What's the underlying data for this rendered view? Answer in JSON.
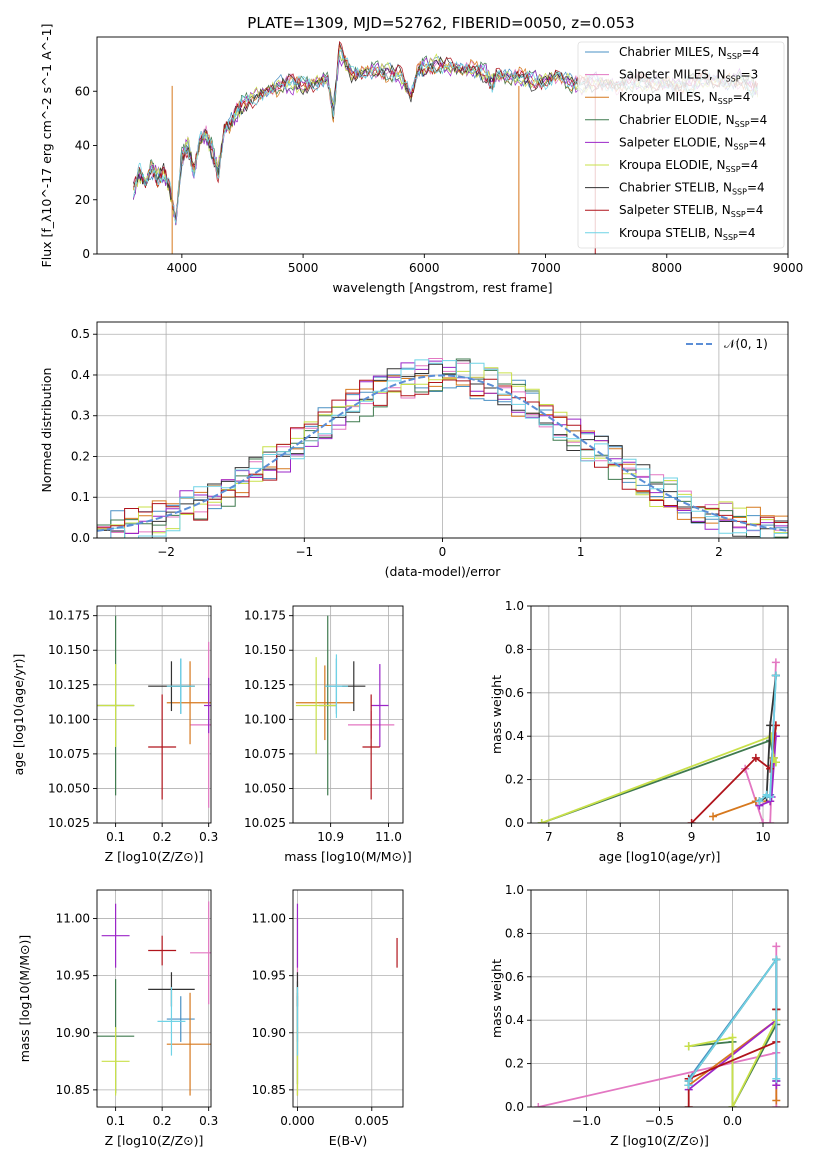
{
  "figure_title": "PLATE=1309, MJD=52762, FIBERID=0050, z=0.053",
  "colors": {
    "Chabrier MILES": "#4a90c4",
    "Salpeter MILES": "#e377c2",
    "Kroupa MILES": "#d6781e",
    "Chabrier ELODIE": "#3f7a4f",
    "Salpeter ELODIE": "#9b26c8",
    "Kroupa ELODIE": "#c9e04a",
    "Chabrier STELIB": "#333333",
    "Salpeter STELIB": "#b0141c",
    "Kroupa STELIB": "#6fd3e6",
    "normal_curve": "#5b8ed6",
    "grid": "#b0b0b0"
  },
  "chart_data": [
    {
      "id": "spectrum",
      "type": "line",
      "xlabel": "wavelength [Angstrom, rest frame]",
      "ylabel": "Flux [f_λ10^-17 erg cm^-2 s^-1 A^-1]",
      "xlim": [
        3300,
        9000
      ],
      "ylim": [
        0,
        80
      ],
      "xticks": [
        4000,
        5000,
        6000,
        7000,
        8000,
        9000
      ],
      "yticks": [
        0,
        20,
        40,
        60
      ],
      "grid": false,
      "legend_position": "top-right",
      "legend": [
        {
          "label": "Chabrier MILES, N_SSP=4",
          "main": "Chabrier MILES, N",
          "sub": "SSP",
          "tail": "=4",
          "series": "Chabrier MILES"
        },
        {
          "label": "Salpeter MILES, N_SSP=3",
          "main": "Salpeter MILES, N",
          "sub": "SSP",
          "tail": "=3",
          "series": "Salpeter MILES"
        },
        {
          "label": "Kroupa MILES, N_SSP=4",
          "main": "Kroupa MILES, N",
          "sub": "SSP",
          "tail": "=4",
          "series": "Kroupa MILES"
        },
        {
          "label": "Chabrier ELODIE, N_SSP=4",
          "main": "Chabrier ELODIE, N",
          "sub": "SSP",
          "tail": "=4",
          "series": "Chabrier ELODIE"
        },
        {
          "label": "Salpeter ELODIE, N_SSP=4",
          "main": "Salpeter ELODIE, N",
          "sub": "SSP",
          "tail": "=4",
          "series": "Salpeter ELODIE"
        },
        {
          "label": "Kroupa ELODIE, N_SSP=4",
          "main": "Kroupa ELODIE, N",
          "sub": "SSP",
          "tail": "=4",
          "series": "Kroupa ELODIE"
        },
        {
          "label": "Chabrier STELIB, N_SSP=4",
          "main": "Chabrier STELIB, N",
          "sub": "SSP",
          "tail": "=4",
          "series": "Chabrier STELIB"
        },
        {
          "label": "Salpeter STELIB, N_SSP=4",
          "main": "Salpeter STELIB, N",
          "sub": "SSP",
          "tail": "=4",
          "series": "Salpeter STELIB"
        },
        {
          "label": "Kroupa STELIB, N_SSP=4",
          "main": "Kroupa STELIB, N",
          "sub": "SSP",
          "tail": "=4",
          "series": "Kroupa STELIB"
        }
      ],
      "x": [
        3600,
        3650,
        3700,
        3750,
        3800,
        3850,
        3900,
        3950,
        4000,
        4050,
        4100,
        4150,
        4200,
        4250,
        4300,
        4350,
        4400,
        4450,
        4500,
        4600,
        4700,
        4800,
        4900,
        5000,
        5100,
        5200,
        5250,
        5300,
        5400,
        5500,
        5600,
        5700,
        5800,
        5890,
        5950,
        6000,
        6100,
        6200,
        6300,
        6400,
        6500,
        6560,
        6600,
        6700,
        6800,
        6900,
        7000,
        7100,
        7200,
        7300,
        7400,
        7500,
        7600,
        7700,
        7800,
        7900,
        8000,
        8100,
        8200,
        8300,
        8400,
        8500,
        8600,
        8700,
        8750
      ],
      "flux": [
        23,
        30,
        26,
        32,
        28,
        30,
        24,
        12,
        36,
        40,
        30,
        42,
        44,
        38,
        30,
        46,
        48,
        52,
        55,
        58,
        60,
        62,
        63,
        62,
        63,
        65,
        52,
        75,
        66,
        67,
        68,
        67,
        66,
        58,
        68,
        69,
        70,
        69,
        68,
        68,
        67,
        63,
        66,
        65,
        65,
        64,
        64,
        66,
        63,
        62,
        64,
        63,
        62,
        64,
        63,
        63,
        63,
        62,
        63,
        64,
        64,
        63,
        65,
        62,
        60
      ],
      "spikes": [
        {
          "x": 3920,
          "y_min": 0,
          "series": "Kroupa MILES"
        },
        {
          "x": 6780,
          "y_min": 0,
          "series": "Kroupa MILES"
        },
        {
          "x": 7410,
          "y_min": 0,
          "series": "Salpeter STELIB"
        }
      ]
    },
    {
      "id": "residual_hist",
      "type": "line",
      "subtype": "step-histogram",
      "xlabel": "(data-model)/error",
      "ylabel": "Normed distribution",
      "xlim": [
        -2.5,
        2.5
      ],
      "ylim": [
        0,
        0.53
      ],
      "xticks": [
        -2,
        -1,
        0,
        1,
        2
      ],
      "xticklabels": [
        "−2",
        "−1",
        "0",
        "1",
        "2"
      ],
      "yticks": [
        0.0,
        0.1,
        0.2,
        0.3,
        0.4,
        0.5
      ],
      "yticklabels": [
        "0.0",
        "0.1",
        "0.2",
        "0.3",
        "0.4",
        "0.5"
      ],
      "grid": true,
      "legend_position": "top-right",
      "legend": [
        {
          "label": "𝒩(0, 1)",
          "series": "normal_curve"
        }
      ],
      "bin_width": 0.1,
      "bin_start": -2.5
    },
    {
      "id": "age_vs_Z",
      "type": "scatter",
      "subtype": "errorbar",
      "xlabel": "Z [log10(Z/Z⊙)]",
      "ylabel": "age [log10(age/yr)]",
      "xlim": [
        0.06,
        0.305
      ],
      "ylim": [
        10.025,
        10.182
      ],
      "xticks": [
        0.1,
        0.2,
        0.3
      ],
      "xticklabels": [
        "0.1",
        "0.2",
        "0.3"
      ],
      "yticks": [
        10.025,
        10.05,
        10.075,
        10.1,
        10.125,
        10.15,
        10.175
      ],
      "yticklabels": [
        "10.025",
        "10.050",
        "10.075",
        "10.100",
        "10.125",
        "10.150",
        "10.175"
      ],
      "grid": true,
      "points": [
        {
          "series": "Chabrier MILES",
          "x": 0.24,
          "y": 10.124,
          "xerr": 0.02,
          "yerr": 0.02
        },
        {
          "series": "Salpeter MILES",
          "x": 0.3,
          "y": 10.096,
          "xerr": 0.04,
          "yerr": 0.06
        },
        {
          "series": "Kroupa MILES",
          "x": 0.26,
          "y": 10.112,
          "xerr": 0.05,
          "yerr": 0.03
        },
        {
          "series": "Chabrier ELODIE",
          "x": 0.1,
          "y": 10.11,
          "xerr": 0.04,
          "yerr": 0.065
        },
        {
          "series": "Salpeter ELODIE",
          "x": 0.3,
          "y": 10.11,
          "xerr": 0.01,
          "yerr": 0.02
        },
        {
          "series": "Kroupa ELODIE",
          "x": 0.1,
          "y": 10.11,
          "xerr": 0.04,
          "yerr": 0.03
        },
        {
          "series": "Chabrier STELIB",
          "x": 0.22,
          "y": 10.124,
          "xerr": 0.05,
          "yerr": 0.018
        },
        {
          "series": "Salpeter STELIB",
          "x": 0.2,
          "y": 10.08,
          "xerr": 0.03,
          "yerr": 0.038
        },
        {
          "series": "Kroupa STELIB",
          "x": 0.24,
          "y": 10.124,
          "xerr": 0.03,
          "yerr": 0.02
        }
      ]
    },
    {
      "id": "age_vs_mass",
      "type": "scatter",
      "subtype": "errorbar",
      "xlabel": "mass [log10(M/M⊙)]",
      "ylabel": "",
      "xlim": [
        10.835,
        11.025
      ],
      "ylim": [
        10.025,
        10.182
      ],
      "xticks": [
        10.9,
        11.0
      ],
      "xticklabels": [
        "10.9",
        "11.0"
      ],
      "yticks": [
        10.025,
        10.05,
        10.075,
        10.1,
        10.125,
        10.15,
        10.175
      ],
      "yticklabels": [
        "10.025",
        "10.050",
        "10.075",
        "10.100",
        "10.125",
        "10.150",
        "10.175"
      ],
      "grid": true,
      "points": [
        {
          "series": "Chabrier MILES",
          "x": 10.91,
          "y": 10.124,
          "xerr": 0.02,
          "yerr": 0.02
        },
        {
          "series": "Salpeter MILES",
          "x": 10.97,
          "y": 10.096,
          "xerr": 0.04,
          "yerr": 0.01
        },
        {
          "series": "Kroupa MILES",
          "x": 10.89,
          "y": 10.112,
          "xerr": 0.05,
          "yerr": 0.027
        },
        {
          "series": "Chabrier ELODIE",
          "x": 10.895,
          "y": 10.11,
          "xerr": 0.015,
          "yerr": 0.065
        },
        {
          "series": "Salpeter ELODIE",
          "x": 10.985,
          "y": 10.11,
          "xerr": 0.015,
          "yerr": 0.03
        },
        {
          "series": "Kroupa ELODIE",
          "x": 10.875,
          "y": 10.11,
          "xerr": 0.035,
          "yerr": 0.035
        },
        {
          "series": "Chabrier STELIB",
          "x": 10.94,
          "y": 10.124,
          "xerr": 0.02,
          "yerr": 0.018
        },
        {
          "series": "Salpeter STELIB",
          "x": 10.97,
          "y": 10.08,
          "xerr": 0.015,
          "yerr": 0.038
        },
        {
          "series": "Kroupa STELIB",
          "x": 10.91,
          "y": 10.124,
          "xerr": 0.02,
          "yerr": 0.023
        }
      ]
    },
    {
      "id": "mass_weight_vs_age",
      "type": "line",
      "xlabel": "age [log10(age/yr)]",
      "ylabel": "mass weight",
      "xlim": [
        6.75,
        10.35
      ],
      "ylim": [
        0,
        1
      ],
      "xticks": [
        7,
        8,
        9,
        10
      ],
      "xticklabels": [
        "7",
        "8",
        "9",
        "10"
      ],
      "yticks": [
        0.0,
        0.2,
        0.4,
        0.6,
        0.8,
        1.0
      ],
      "yticklabels": [
        "0.0",
        "0.2",
        "0.4",
        "0.6",
        "0.8",
        "1.0"
      ],
      "grid": true,
      "series": [
        {
          "name": "Chabrier MILES",
          "x": [
            9.9,
            10.05,
            10.1,
            10.18
          ],
          "y": [
            0.1,
            0.12,
            0.13,
            0.68
          ]
        },
        {
          "name": "Salpeter MILES",
          "x": [
            9.75,
            10.0,
            10.1,
            10.18
          ],
          "y": [
            0.25,
            0.0,
            0.0,
            0.74
          ]
        },
        {
          "name": "Kroupa MILES",
          "x": [
            9.3,
            9.9,
            10.1,
            10.18
          ],
          "y": [
            0.03,
            0.1,
            0.1,
            0.45
          ]
        },
        {
          "name": "Chabrier ELODIE",
          "x": [
            6.9,
            10.1,
            10.15,
            10.18
          ],
          "y": [
            0.0,
            0.38,
            0.3,
            0.28
          ]
        },
        {
          "name": "Salpeter ELODIE",
          "x": [
            9.95,
            10.1,
            10.12,
            10.18
          ],
          "y": [
            0.08,
            0.1,
            0.12,
            0.4
          ]
        },
        {
          "name": "Kroupa ELODIE",
          "x": [
            6.9,
            10.12,
            10.15,
            10.18
          ],
          "y": [
            0.0,
            0.4,
            0.3,
            0.28
          ]
        },
        {
          "name": "Chabrier STELIB",
          "x": [
            9.95,
            10.05,
            10.1,
            10.18
          ],
          "y": [
            0.1,
            0.12,
            0.45,
            0.68
          ]
        },
        {
          "name": "Salpeter STELIB",
          "x": [
            9.0,
            9.9,
            10.1,
            10.18
          ],
          "y": [
            0.0,
            0.3,
            0.25,
            0.45
          ]
        },
        {
          "name": "Kroupa STELIB",
          "x": [
            9.95,
            10.05,
            10.1,
            10.18
          ],
          "y": [
            0.1,
            0.13,
            0.12,
            0.68
          ]
        }
      ]
    },
    {
      "id": "mass_vs_Z",
      "type": "scatter",
      "subtype": "errorbar",
      "xlabel": "Z [log10(Z/Z⊙)]",
      "ylabel": "mass [log10(M/M⊙)]",
      "xlim": [
        0.06,
        0.305
      ],
      "ylim": [
        10.835,
        11.025
      ],
      "xticks": [
        0.1,
        0.2,
        0.3
      ],
      "xticklabels": [
        "0.1",
        "0.2",
        "0.3"
      ],
      "yticks": [
        10.85,
        10.9,
        10.95,
        11.0
      ],
      "yticklabels": [
        "10.85",
        "10.90",
        "10.95",
        "11.00"
      ],
      "grid": true,
      "points": [
        {
          "series": "Chabrier MILES",
          "x": 0.24,
          "y": 10.912,
          "xerr": 0.03,
          "yerr": 0.02
        },
        {
          "series": "Salpeter MILES",
          "x": 0.3,
          "y": 10.97,
          "xerr": 0.04,
          "yerr": 0.045
        },
        {
          "series": "Kroupa MILES",
          "x": 0.26,
          "y": 10.89,
          "xerr": 0.05,
          "yerr": 0.045
        },
        {
          "series": "Chabrier ELODIE",
          "x": 0.1,
          "y": 10.897,
          "xerr": 0.04,
          "yerr": 0.05
        },
        {
          "series": "Salpeter ELODIE",
          "x": 0.1,
          "y": 10.985,
          "xerr": 0.03,
          "yerr": 0.028
        },
        {
          "series": "Kroupa ELODIE",
          "x": 0.1,
          "y": 10.875,
          "xerr": 0.03,
          "yerr": 0.03
        },
        {
          "series": "Chabrier STELIB",
          "x": 0.22,
          "y": 10.938,
          "xerr": 0.05,
          "yerr": 0.015
        },
        {
          "series": "Salpeter STELIB",
          "x": 0.2,
          "y": 10.972,
          "xerr": 0.03,
          "yerr": 0.013
        },
        {
          "series": "Kroupa STELIB",
          "x": 0.22,
          "y": 10.91,
          "xerr": 0.03,
          "yerr": 0.03
        }
      ]
    },
    {
      "id": "mass_vs_ebv",
      "type": "scatter",
      "subtype": "errorbar",
      "xlabel": "E(B-V)",
      "ylabel": "",
      "xlim": [
        -0.0003,
        0.0071
      ],
      "ylim": [
        10.835,
        11.025
      ],
      "xticks": [
        0.0,
        0.005
      ],
      "xticklabels": [
        "0.000",
        "0.005"
      ],
      "yticks": [
        10.85,
        10.9,
        10.95,
        11.0
      ],
      "yticklabels": [
        "10.85",
        "10.90",
        "10.95",
        "11.00"
      ],
      "grid": true,
      "points": [
        {
          "series": "Chabrier MILES",
          "x": 0.0,
          "y": 10.912,
          "xerr": 0.0,
          "yerr": 0.02
        },
        {
          "series": "Salpeter MILES",
          "x": 0.0,
          "y": 10.97,
          "xerr": 0.0,
          "yerr": 0.03
        },
        {
          "series": "Kroupa MILES",
          "x": 0.0,
          "y": 10.89,
          "xerr": 0.0,
          "yerr": 0.045
        },
        {
          "series": "Chabrier ELODIE",
          "x": 0.0,
          "y": 10.9,
          "xerr": 0.0,
          "yerr": 0.045
        },
        {
          "series": "Salpeter ELODIE",
          "x": 0.0,
          "y": 10.985,
          "xerr": 0.0,
          "yerr": 0.028
        },
        {
          "series": "Kroupa ELODIE",
          "x": 0.0,
          "y": 10.875,
          "xerr": 0.0,
          "yerr": 0.03
        },
        {
          "series": "Chabrier STELIB",
          "x": 0.0,
          "y": 10.938,
          "xerr": 0.0,
          "yerr": 0.015
        },
        {
          "series": "Salpeter STELIB",
          "x": 0.0067,
          "y": 10.97,
          "xerr": 0.0,
          "yerr": 0.013
        },
        {
          "series": "Kroupa STELIB",
          "x": 0.0,
          "y": 10.91,
          "xerr": 0.0,
          "yerr": 0.03
        }
      ]
    },
    {
      "id": "mass_weight_vs_Z",
      "type": "line",
      "xlabel": "Z [log10(Z/Z⊙)]",
      "ylabel": "mass weight",
      "xlim": [
        -1.38,
        0.38
      ],
      "ylim": [
        0,
        1
      ],
      "xticks": [
        -1.0,
        -0.5,
        0.0
      ],
      "xticklabels": [
        "−1.0",
        "−0.5",
        "0.0"
      ],
      "yticks": [
        0.0,
        0.2,
        0.4,
        0.6,
        0.8,
        1.0
      ],
      "yticklabels": [
        "0.0",
        "0.2",
        "0.4",
        "0.6",
        "0.8",
        "1.0"
      ],
      "grid": true,
      "series": [
        {
          "name": "Chabrier MILES",
          "x": [
            -0.3,
            -0.3,
            0.3,
            0.3
          ],
          "y": [
            0.1,
            0.13,
            0.68,
            0.12
          ]
        },
        {
          "name": "Salpeter MILES",
          "x": [
            -1.33,
            0.3,
            0.3,
            0.3
          ],
          "y": [
            0.0,
            0.25,
            0.74,
            0.0
          ]
        },
        {
          "name": "Kroupa MILES",
          "x": [
            -0.3,
            0.3,
            0.3,
            0.3
          ],
          "y": [
            0.1,
            0.4,
            0.45,
            0.03
          ]
        },
        {
          "name": "Chabrier ELODIE",
          "x": [
            -0.3,
            0.0,
            0.0,
            0.3
          ],
          "y": [
            0.28,
            0.3,
            0.0,
            0.38
          ]
        },
        {
          "name": "Salpeter ELODIE",
          "x": [
            -0.3,
            0.3,
            0.3,
            0.3
          ],
          "y": [
            0.08,
            0.4,
            0.12,
            0.1
          ]
        },
        {
          "name": "Kroupa ELODIE",
          "x": [
            -0.3,
            0.0,
            0.0,
            0.3
          ],
          "y": [
            0.28,
            0.32,
            0.0,
            0.4
          ]
        },
        {
          "name": "Chabrier STELIB",
          "x": [
            -0.3,
            -0.3,
            0.3,
            0.3
          ],
          "y": [
            0.1,
            0.12,
            0.68,
            0.45
          ]
        },
        {
          "name": "Salpeter STELIB",
          "x": [
            -0.3,
            -0.3,
            0.3,
            0.3
          ],
          "y": [
            0.0,
            0.13,
            0.3,
            0.45
          ]
        },
        {
          "name": "Kroupa STELIB",
          "x": [
            -0.3,
            -0.3,
            0.3,
            0.3
          ],
          "y": [
            0.1,
            0.12,
            0.68,
            0.13
          ]
        }
      ]
    }
  ]
}
